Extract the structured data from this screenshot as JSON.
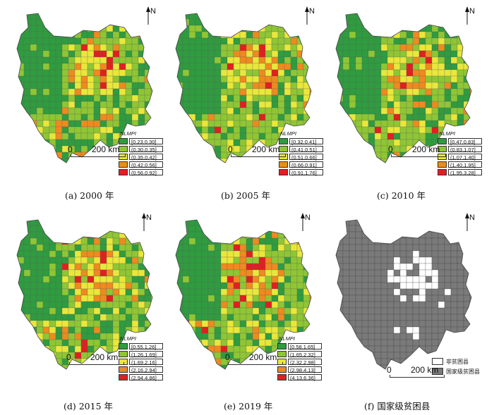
{
  "north_label": "N",
  "scale": {
    "zero": "0",
    "distance": "200 km"
  },
  "legend_title": "NLMPI",
  "class_colors": [
    "#2e9c3f",
    "#8fc634",
    "#e9e73a",
    "#ee8a1f",
    "#e02020"
  ],
  "boundary_color": "#5c5c5c",
  "panels": [
    {
      "caption": "(a) 2000 年",
      "classes": [
        "[0.23,0.30]",
        "(0.30,0.35]",
        "(0.35,0.42]",
        "(0.42,0.56]",
        "(0.56,0.92]"
      ]
    },
    {
      "caption": "(b) 2005 年",
      "classes": [
        "[0.32,0.41]",
        "(0.41,0.51]",
        "(0.51,0.66]",
        "(0.66,0.91]",
        "(0.91,1.76]"
      ]
    },
    {
      "caption": "(c) 2010 年",
      "classes": [
        "[0.47,0.83]",
        "(0.83,1.07]",
        "(1.07,1.40]",
        "(1.40,1.95]",
        "(1.95,3.28]"
      ]
    },
    {
      "caption": "(d) 2015 年",
      "classes": [
        "[0.55,1.26]",
        "(1.26,1.69]",
        "(1.69,2.16]",
        "(2.16,2.94]",
        "(2.94,4.86]"
      ]
    },
    {
      "caption": "(e) 2019 年",
      "classes": [
        "[0.58,1.65]",
        "(1.65,2.32]",
        "(2.32,2.98]",
        "(2.98,4.13]",
        "(4.13,6.36]"
      ]
    },
    {
      "caption": "(f) 国家级贫困县",
      "poverty_legend": [
        "非贫困县",
        "国家级贫困县"
      ],
      "poverty_colors": [
        "#ffffff",
        "#7a7a7a"
      ]
    }
  ]
}
